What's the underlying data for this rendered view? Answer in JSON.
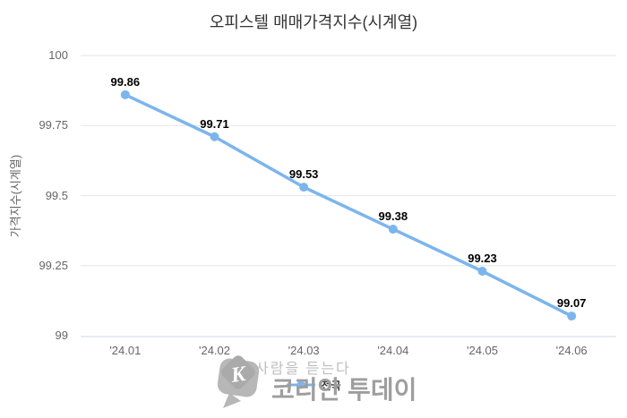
{
  "colors": {
    "line": "#7cb5ec",
    "marker": "#7cb5ec",
    "grid": "#e6e6e6",
    "axis_line": "#ccd6eb",
    "tick_label": "#666666",
    "title": "#333333",
    "data_label": "#000000",
    "legend_label": "#333333",
    "watermark_tagline": "#bdbdbd",
    "watermark_brand": "#9e9e9e",
    "watermark_logo": "#b0b0b0"
  },
  "chart_data": {
    "type": "line",
    "title": "오피스텔 매매가격지수(시계열)",
    "categories": [
      "'24.01",
      "'24.02",
      "'24.03",
      "'24.04",
      "'24.05",
      "'24.06"
    ],
    "series": [
      {
        "name": "전국",
        "values": [
          99.86,
          99.71,
          99.53,
          99.38,
          99.23,
          99.07
        ]
      }
    ],
    "data_labels": [
      "99.86",
      "99.71",
      "99.53",
      "99.38",
      "99.23",
      "99.07"
    ],
    "xlabel": "",
    "ylabel": "가격지수(시계열)",
    "ylim": [
      99,
      100
    ],
    "yticks": [
      "100",
      "99.75",
      "99.5",
      "99.25",
      "99"
    ],
    "grid": true,
    "legend_position": "bottom-center",
    "marker_style": "circle"
  },
  "watermark": {
    "tagline": "사람을 듣는다",
    "brand": "코리안 투데이",
    "logo_letter": "K"
  }
}
